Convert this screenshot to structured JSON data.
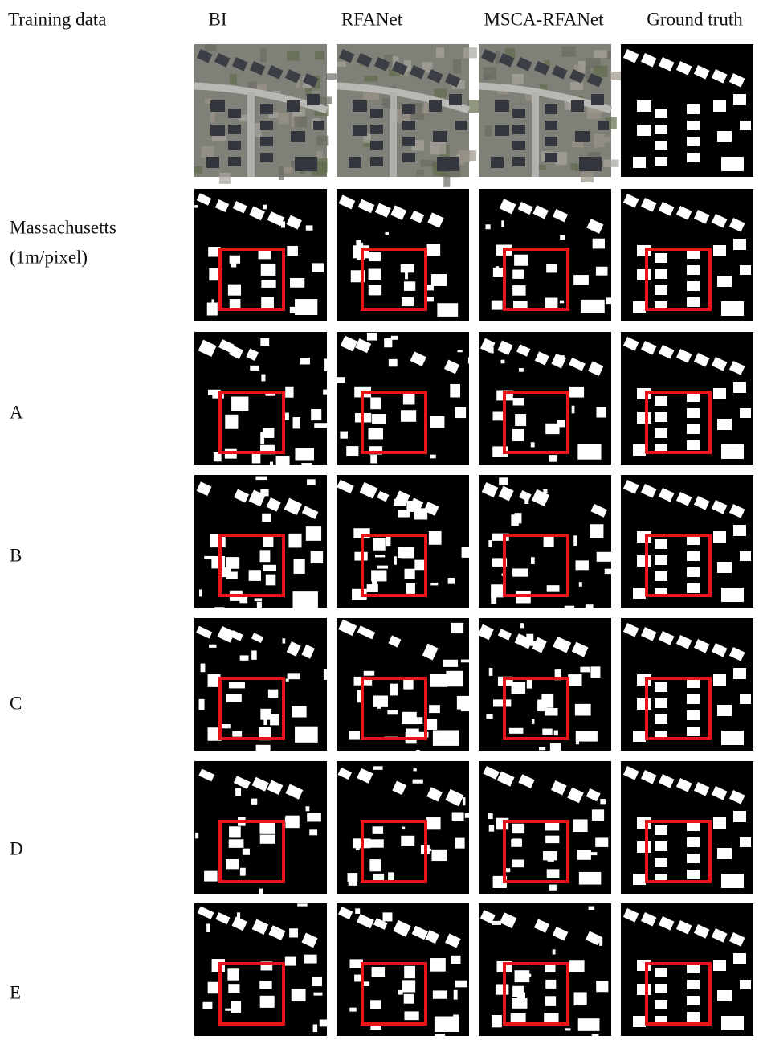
{
  "header": {
    "columns": [
      "Training data",
      "BI",
      "RFANet",
      "MSCA-RFANet",
      "Ground truth"
    ]
  },
  "rows": [
    {
      "lines": [
        "Massachusetts",
        "(1m/pixel)"
      ]
    },
    {
      "lines": [
        "A"
      ]
    },
    {
      "lines": [
        "B"
      ]
    },
    {
      "lines": [
        "C"
      ]
    },
    {
      "lines": [
        "D"
      ]
    },
    {
      "lines": [
        "E"
      ]
    }
  ]
}
